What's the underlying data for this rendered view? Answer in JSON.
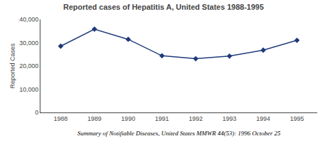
{
  "chart_data": {
    "type": "line",
    "title": "Reported cases of Hepatitis A, United States 1988-1995",
    "x": [
      1988,
      1989,
      1990,
      1991,
      1992,
      1993,
      1994,
      1995
    ],
    "values": [
      28507,
      35821,
      31441,
      24378,
      23112,
      24238,
      26796,
      31032
    ],
    "ylabel": "Reported Cases",
    "xlim": [
      1987.4,
      1995.6
    ],
    "xticks": [
      1988,
      1989,
      1990,
      1991,
      1992,
      1993,
      1994,
      1995
    ],
    "ylim": [
      0,
      40000
    ],
    "yticks": [
      0,
      {
        "value": 10000,
        "label": "10,000"
      },
      {
        "value": 20000,
        "label": "20,000"
      },
      {
        "value": 30000,
        "label": "30,000"
      },
      {
        "value": 40000,
        "label": "40,000"
      }
    ],
    "color": "#1F3A7A",
    "marker": "diamond",
    "grid": false,
    "annotations": [
      "Summary of Notifiable Diseases, United States MMWR 44(53): 1996 October 25"
    ]
  }
}
